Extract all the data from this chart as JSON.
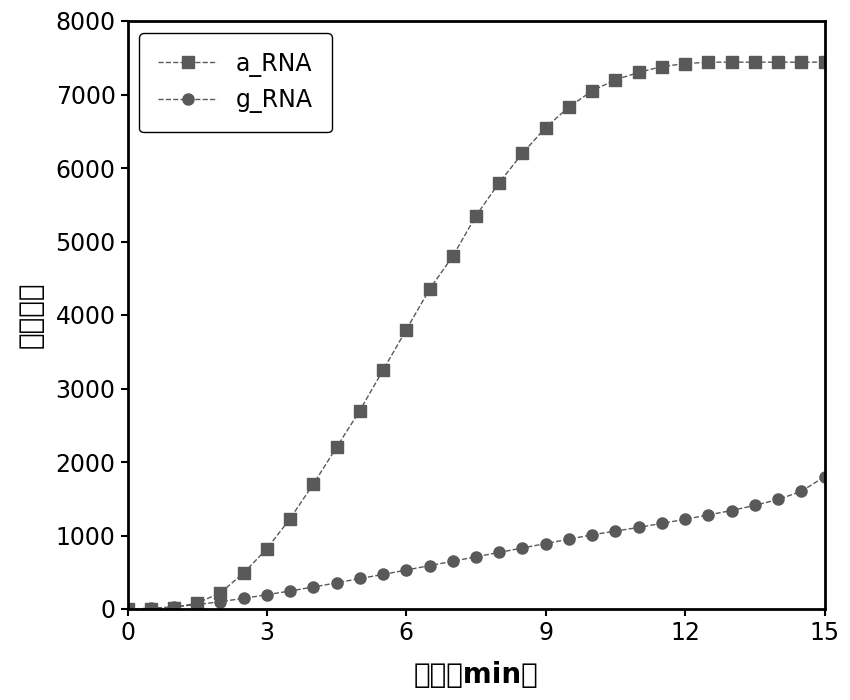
{
  "a_RNA_x": [
    0,
    0.5,
    1.0,
    1.5,
    2.0,
    2.5,
    3.0,
    3.5,
    4.0,
    4.5,
    5.0,
    5.5,
    6.0,
    6.5,
    7.0,
    7.5,
    8.0,
    8.5,
    9.0,
    9.5,
    10.0,
    10.5,
    11.0,
    11.5,
    12.0,
    12.5,
    13.0,
    13.5,
    14.0,
    14.5,
    15.0
  ],
  "a_RNA_y": [
    0,
    0,
    20,
    80,
    220,
    490,
    820,
    1230,
    1700,
    2200,
    2700,
    3250,
    3800,
    4350,
    4800,
    5350,
    5800,
    6200,
    6550,
    6830,
    7050,
    7200,
    7300,
    7380,
    7420,
    7440,
    7440,
    7440,
    7440,
    7440,
    7440
  ],
  "g_RNA_x": [
    0,
    0.5,
    1.0,
    1.5,
    2.0,
    2.5,
    3.0,
    3.5,
    4.0,
    4.5,
    5.0,
    5.5,
    6.0,
    6.5,
    7.0,
    7.5,
    8.0,
    8.5,
    9.0,
    9.5,
    10.0,
    10.5,
    11.0,
    11.5,
    12.0,
    12.5,
    13.0,
    13.5,
    14.0,
    14.5,
    15.0
  ],
  "g_RNA_y": [
    0,
    10,
    30,
    60,
    100,
    145,
    195,
    245,
    300,
    355,
    415,
    470,
    530,
    590,
    650,
    710,
    770,
    830,
    890,
    950,
    1010,
    1060,
    1110,
    1165,
    1220,
    1280,
    1340,
    1410,
    1490,
    1600,
    1800
  ],
  "line_color": "#595959",
  "marker_color": "#595959",
  "background_color": "#ffffff",
  "xlabel": "时间（min）",
  "ylabel": "荧光强度",
  "xlim": [
    0,
    15
  ],
  "ylim": [
    0,
    8000
  ],
  "xticks": [
    0,
    3,
    6,
    9,
    12,
    15
  ],
  "yticks": [
    0,
    1000,
    2000,
    3000,
    4000,
    5000,
    6000,
    7000,
    8000
  ],
  "legend_a": "a_RNA",
  "legend_g": "g_RNA",
  "xlabel_fontsize": 20,
  "ylabel_fontsize": 20,
  "tick_fontsize": 17,
  "legend_fontsize": 17
}
